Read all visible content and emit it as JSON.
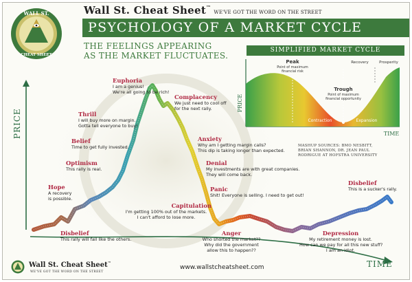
{
  "header": {
    "brand": "Wall St. Cheat Sheet",
    "tm": "™",
    "tagline": "WE'VE GOT THE WORD ON THE STREET",
    "title": "PSYCHOLOGY OF A MARKET CYCLE",
    "subtitle_line1": "THE FEELINGS APPEARING",
    "subtitle_line2": "AS THE MARKET FLUCTUATES.",
    "logo_text_top": "WALL ST.",
    "logo_text_bottom": "CHEAT SHEET"
  },
  "inset": {
    "title": "SIMPLIFIED MARKET CYCLE",
    "y_axis": "PRICE",
    "x_axis": "TIME",
    "peak_title": "Peak",
    "peak_sub1": "Point of maximum",
    "peak_sub2": "financial risk",
    "trough_title": "Trough",
    "trough_sub1": "Point of maximum",
    "trough_sub2": "financial opportunity",
    "recovery": "Recovery",
    "prosperity": "Prosperity",
    "contraction": "Contraction",
    "expansion": "Expansion"
  },
  "main_axes": {
    "y_label": "PRICE",
    "x_label": "TIME"
  },
  "stages": [
    {
      "title": "Euphoria",
      "lines": [
        "I am a genius!",
        "We're all going to be rich!"
      ]
    },
    {
      "title": "Thrill",
      "lines": [
        "I will buy more on margin.",
        "Gotta tell everyone to buy!"
      ]
    },
    {
      "title": "Belief",
      "lines": [
        "Time to get fully invested."
      ]
    },
    {
      "title": "Optimism",
      "lines": [
        "This rally is real."
      ]
    },
    {
      "title": "Hope",
      "lines": [
        "A recovery",
        "is possible."
      ]
    },
    {
      "title": "Disbelief",
      "lines": [
        "This rally will fail like the others."
      ]
    },
    {
      "title": "Complacency",
      "lines": [
        "We just need to cool off",
        "for the next rally."
      ]
    },
    {
      "title": "Anxiety",
      "lines": [
        "Why am I getting margin calls?",
        "This dip is taking longer than expected."
      ]
    },
    {
      "title": "Denial",
      "lines": [
        "My investments are with great companies.",
        "They will come back."
      ]
    },
    {
      "title": "Panic",
      "lines": [
        "Shit! Everyone is selling. I need to get out!"
      ]
    },
    {
      "title": "Capitulation",
      "lines": [
        "I'm getting 100% out of the markets.",
        "I can't afford to lose more."
      ]
    },
    {
      "title": "Anger",
      "lines": [
        "Who shorted the market??",
        "Why did the government",
        "allow this to happen??"
      ]
    },
    {
      "title": "Depression",
      "lines": [
        "My retirement money is lost.",
        "How can we pay for all this new stuff?",
        "I am an idiot."
      ]
    },
    {
      "title": "Disbelief",
      "lines": [
        "This is a sucker's rally."
      ]
    }
  ],
  "credits": [
    "MASHUP SOURCES: BMO NESBITT,",
    "BRIAN SHANNON, DR. JEAN PAUL",
    "RODRIGUE AT HOFSTRA UNIVERSITY"
  ],
  "footer": {
    "brand": "Wall St. Cheat Sheet",
    "tm": "™",
    "tagline": "WE'VE GOT THE WORD ON THE STREET",
    "url": "www.wallstcheatsheet.com"
  },
  "colors": {
    "brand_green": "#3d7a3d",
    "stage_red": "#b02a44",
    "axis_green": "#2d6e45"
  }
}
